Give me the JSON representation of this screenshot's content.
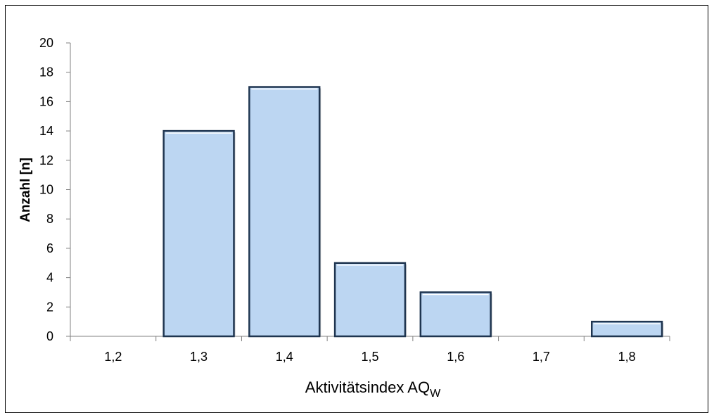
{
  "chart_data": {
    "type": "bar",
    "categories": [
      "1,2",
      "1,3",
      "1,4",
      "1,5",
      "1,6",
      "1,7",
      "1,8"
    ],
    "values": [
      0,
      14,
      17,
      5,
      3,
      0,
      1
    ],
    "xlabel": "Aktivitätsindex AQ",
    "xlabel_subscript": "W",
    "ylabel": "Anzahl  [n]",
    "ylim": [
      0,
      20
    ],
    "yticks": [
      "0",
      "2",
      "4",
      "6",
      "8",
      "10",
      "12",
      "14",
      "16",
      "18",
      "20"
    ],
    "grid": false,
    "legend": "none",
    "colors": {
      "bar_fill": "#bcd6f2",
      "bar_border": "#1f3550",
      "bar_highlight": "#ffffff",
      "axis": "#808080"
    }
  }
}
